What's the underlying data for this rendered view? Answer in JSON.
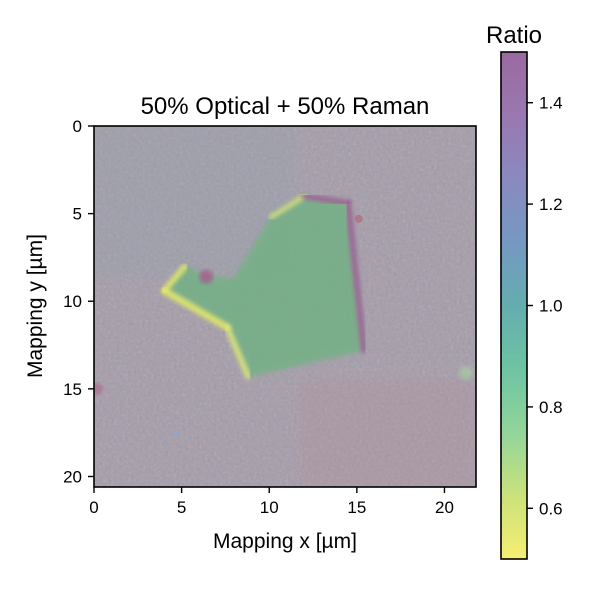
{
  "chart_data": {
    "type": "heatmap",
    "title": "50% Optical + 50% Raman",
    "xlabel": "Mapping x [µm]",
    "ylabel": "Mapping y [µm]",
    "xlim": [
      0,
      21.8
    ],
    "ylim": [
      20.6,
      0
    ],
    "x_ticks": [
      "0",
      "5",
      "10",
      "15",
      "20"
    ],
    "y_ticks": [
      "0",
      "5",
      "10",
      "15",
      "20"
    ],
    "colorbar": {
      "title": "Ratio",
      "range": [
        0.5,
        1.5
      ],
      "ticks": [
        "0.6",
        "0.8",
        "1.0",
        "1.2",
        "1.4"
      ],
      "colormap": "viridis_r"
    },
    "background_ratio": 1.2,
    "flake": {
      "ratio": 0.85,
      "outline_um": [
        [
          12.0,
          4.0
        ],
        [
          14.5,
          4.4
        ],
        [
          15.4,
          12.8
        ],
        [
          8.8,
          14.3
        ],
        [
          7.6,
          11.5
        ],
        [
          4.0,
          9.4
        ],
        [
          5.2,
          8.0
        ],
        [
          6.6,
          8.6
        ],
        [
          8.0,
          8.7
        ],
        [
          10.1,
          5.2
        ]
      ],
      "edge_features": [
        {
          "name": "left-arm edge",
          "ratio": 0.55
        },
        {
          "name": "top-right edge",
          "ratio": 1.45
        },
        {
          "name": "notch",
          "ratio": 1.5
        }
      ]
    }
  }
}
